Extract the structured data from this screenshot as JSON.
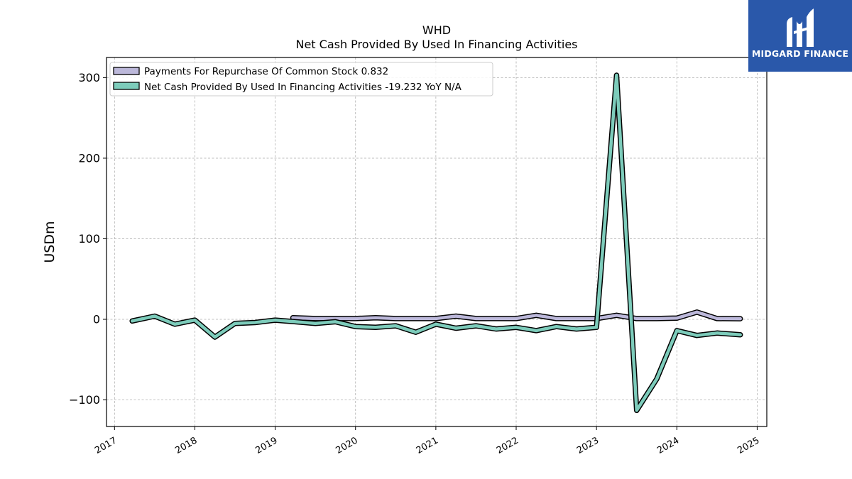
{
  "brand": {
    "name": "MIDGARD FINANCE",
    "color": "#2a58aa"
  },
  "chart_data": {
    "type": "line",
    "title": "WHD",
    "subtitle": "Net Cash Provided By Used In Financing Activities",
    "xlabel": "",
    "ylabel": "USDm",
    "xlim": [
      2016.9,
      2025.12
    ],
    "ylim": [
      -133,
      325
    ],
    "y_ticks": [
      {
        "value": 300,
        "label": "300"
      },
      {
        "value": 200,
        "label": "200"
      },
      {
        "value": 100,
        "label": "100"
      },
      {
        "value": 0,
        "label": "0"
      },
      {
        "value": -100,
        "label": "−100"
      }
    ],
    "x_ticks": [
      {
        "value": 2017,
        "label": "2017"
      },
      {
        "value": 2018,
        "label": "2018"
      },
      {
        "value": 2019,
        "label": "2019"
      },
      {
        "value": 2020,
        "label": "2020"
      },
      {
        "value": 2021,
        "label": "2021"
      },
      {
        "value": 2022,
        "label": "2022"
      },
      {
        "value": 2023,
        "label": "2023"
      },
      {
        "value": 2024,
        "label": "2024"
      },
      {
        "value": 2025,
        "label": "2025"
      }
    ],
    "grid": true,
    "legend_position": "top-left",
    "series": [
      {
        "name": "Payments For Repurchase Of Common Stock",
        "legend_label": "Payments For Repurchase Of Common Stock  0.832",
        "color": "#bcb8da",
        "x": [
          2019.22,
          2019.5,
          2019.75,
          2020.0,
          2020.25,
          2020.5,
          2020.75,
          2021.0,
          2021.25,
          2021.5,
          2021.75,
          2022.0,
          2022.25,
          2022.5,
          2022.75,
          2023.0,
          2023.25,
          2023.5,
          2023.75,
          2024.0,
          2024.25,
          2024.5,
          2024.79
        ],
        "y": [
          2,
          1,
          1,
          1,
          2,
          1,
          1,
          1,
          4,
          1,
          1,
          1,
          5,
          1,
          1,
          1,
          5,
          1,
          1,
          1.5,
          9,
          1,
          0.832
        ]
      },
      {
        "name": "Net Cash Provided By Used In Financing Activities",
        "legend_label": "Net Cash Provided By Used In Financing Activities  -19.232 YoY N/A",
        "color": "#7dccbb",
        "x": [
          2017.22,
          2017.5,
          2017.75,
          2018.0,
          2018.25,
          2018.5,
          2018.75,
          2019.0,
          2019.25,
          2019.5,
          2019.75,
          2020.0,
          2020.25,
          2020.5,
          2020.75,
          2021.0,
          2021.25,
          2021.5,
          2021.75,
          2022.0,
          2022.25,
          2022.5,
          2022.75,
          2023.0,
          2023.25,
          2023.5,
          2023.75,
          2024.0,
          2024.25,
          2024.5,
          2024.79
        ],
        "y": [
          -2,
          4,
          -6,
          -1,
          -22,
          -5,
          -4,
          -1,
          -3,
          -5,
          -3,
          -9,
          -10,
          -8,
          -16,
          -6,
          -11,
          -8,
          -12,
          -10,
          -14,
          -9,
          -12,
          -10,
          303,
          -113,
          -74,
          -14,
          -20,
          -17,
          -19.232
        ]
      }
    ]
  }
}
